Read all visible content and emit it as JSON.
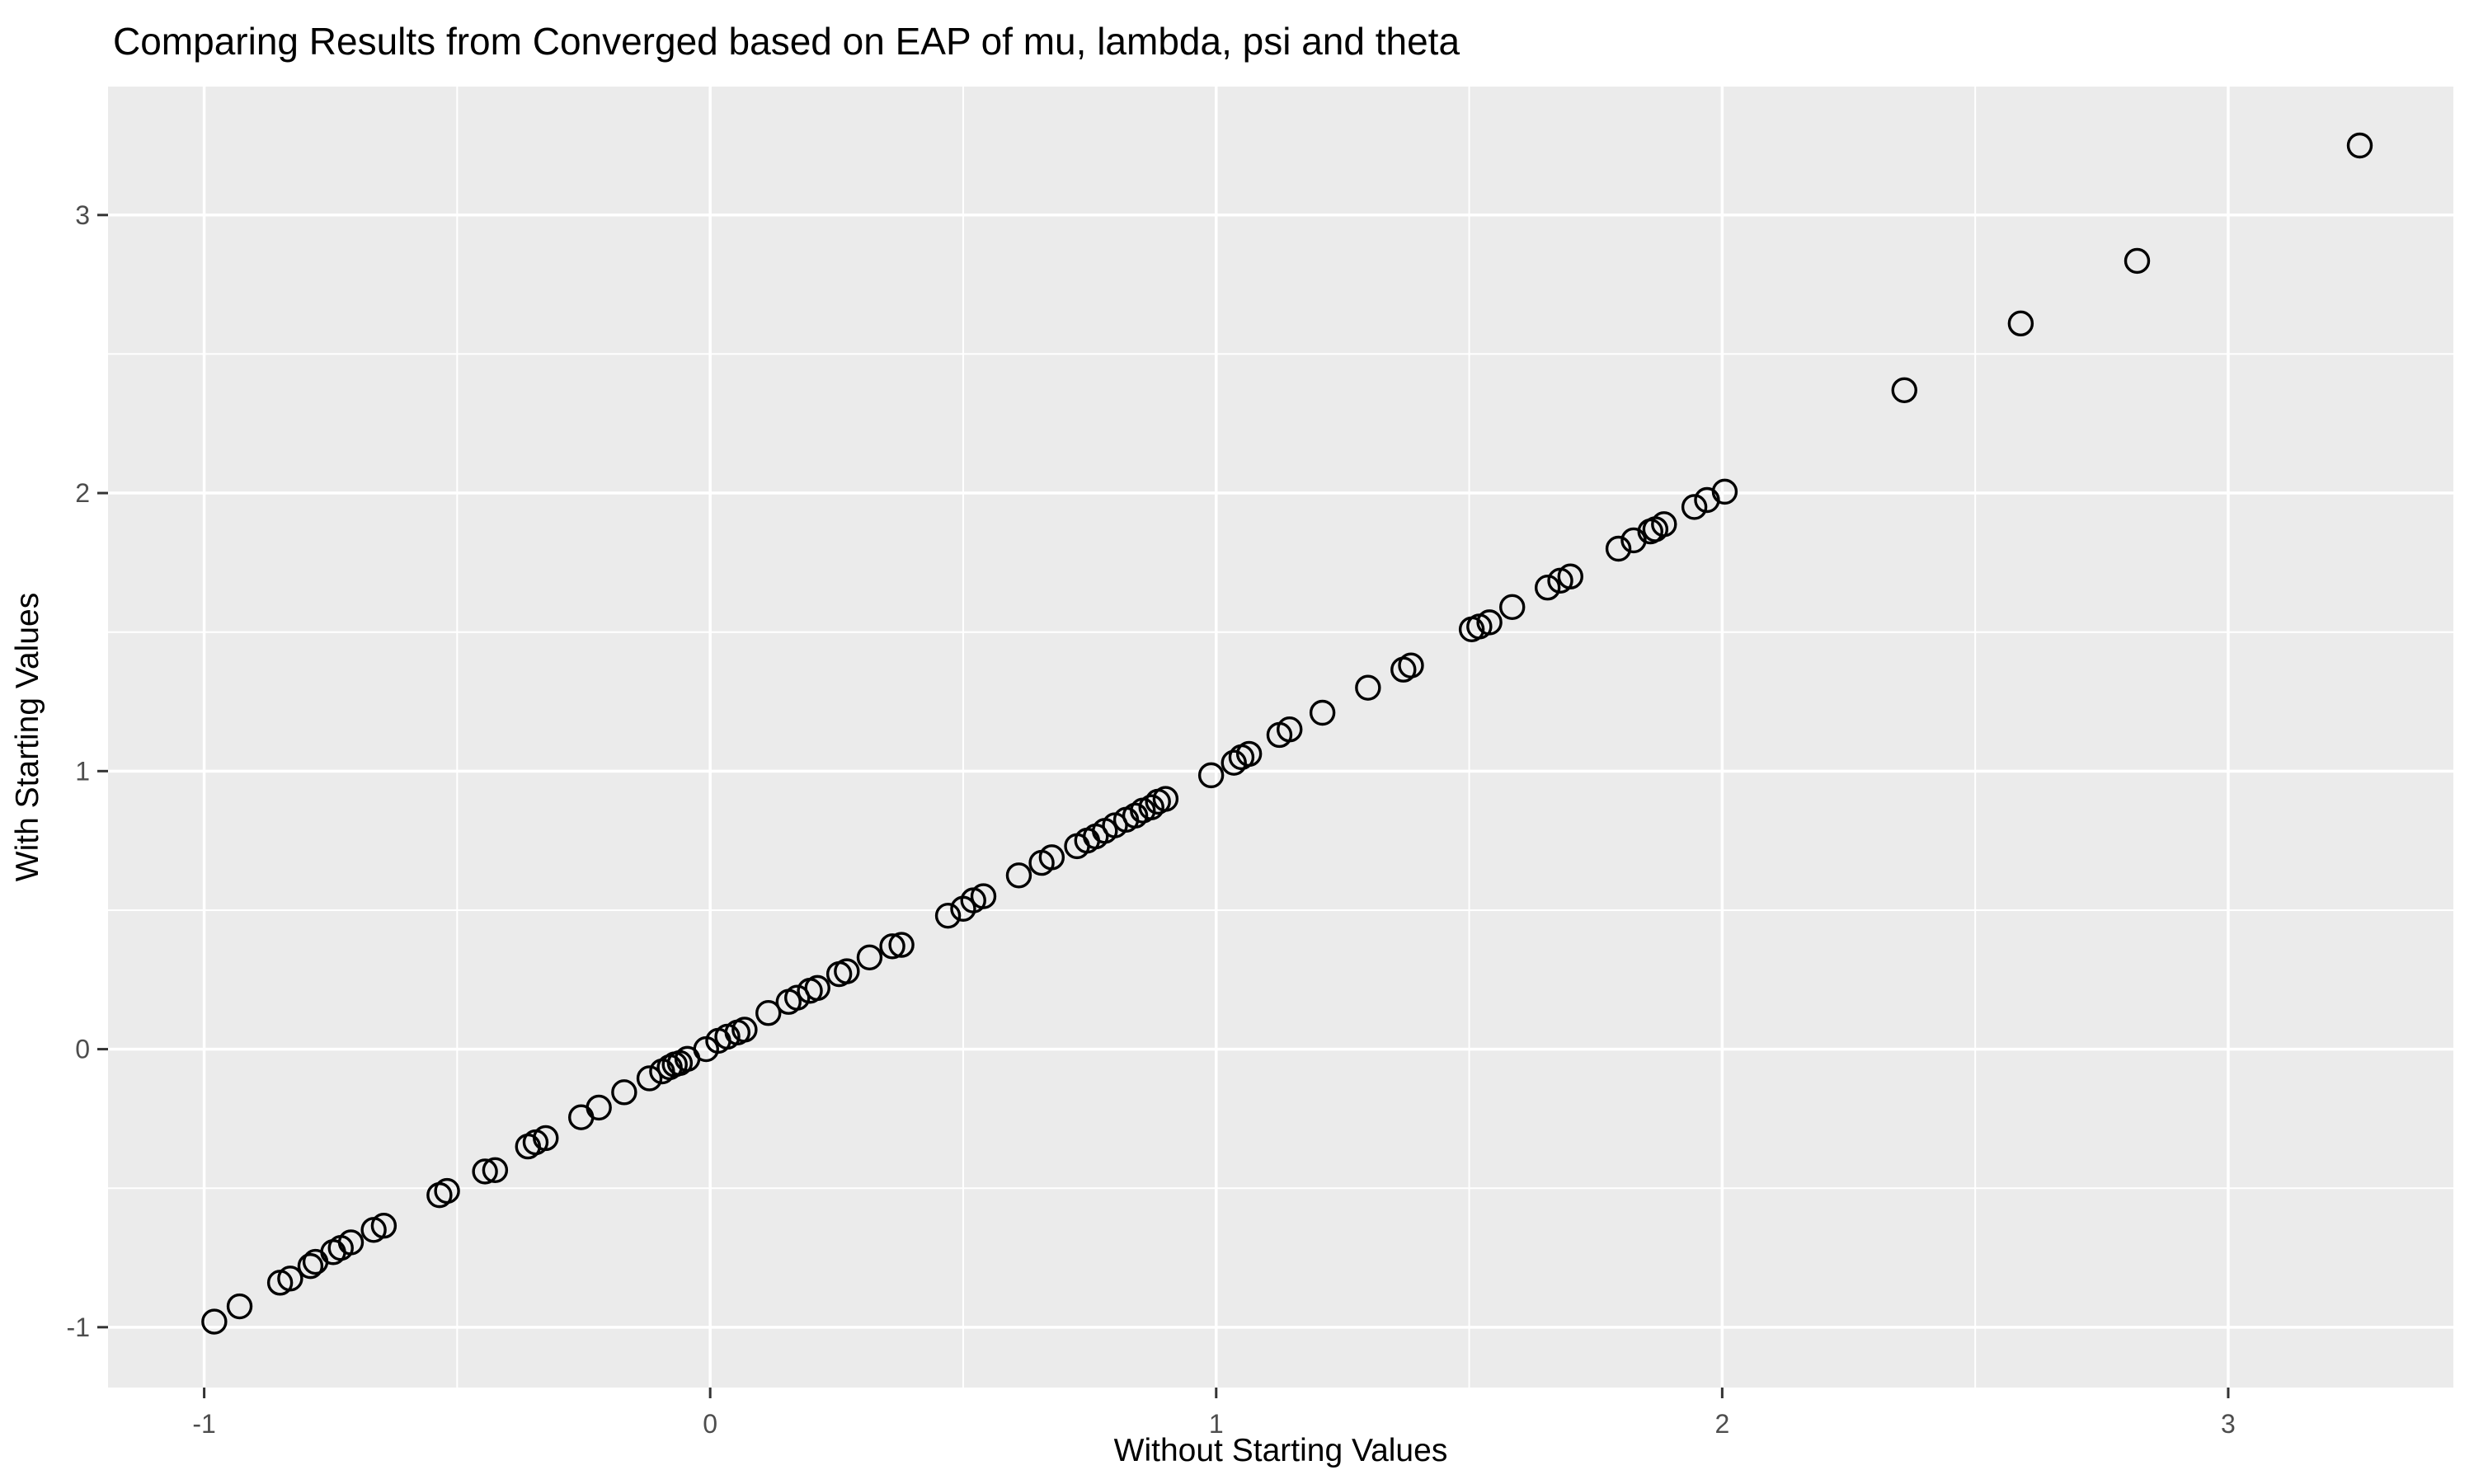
{
  "chart_data": {
    "type": "scatter",
    "title": "Comparing Results from Converged based on EAP of mu, lambda, psi and theta",
    "xlabel": "Without Starting Values",
    "ylabel": "With Starting Values",
    "x_ticks": [
      -1,
      0,
      1,
      2,
      3
    ],
    "y_ticks": [
      -1,
      0,
      1,
      2,
      3
    ],
    "x_minor_ticks": [
      -0.5,
      0.5,
      1.5,
      2.5
    ],
    "y_minor_ticks": [
      -0.5,
      0.5,
      1.5,
      2.5
    ],
    "xlim": [
      -1.19,
      3.445
    ],
    "ylim": [
      -1.217,
      3.462
    ],
    "grid": "major-and-minor",
    "legend_position": "none",
    "marker": {
      "shape": "open-circle",
      "radius_px": 14,
      "stroke_px": 3.4
    },
    "colors": {
      "background": "#FFFFFF",
      "panel_background": "#EBEBEB",
      "gridline": "#FFFFFF",
      "point_stroke": "#000000",
      "tick_mark": "#333333",
      "tick_text": "#4D4D4D",
      "title_text": "#000000"
    },
    "points": [
      [
        -0.98,
        -0.98
      ],
      [
        -0.93,
        -0.925
      ],
      [
        -0.85,
        -0.84
      ],
      [
        -0.83,
        -0.825
      ],
      [
        -0.79,
        -0.78
      ],
      [
        -0.78,
        -0.765
      ],
      [
        -0.745,
        -0.73
      ],
      [
        -0.73,
        -0.715
      ],
      [
        -0.71,
        -0.695
      ],
      [
        -0.665,
        -0.65
      ],
      [
        -0.645,
        -0.635
      ],
      [
        -0.535,
        -0.525
      ],
      [
        -0.52,
        -0.51
      ],
      [
        -0.445,
        -0.44
      ],
      [
        -0.425,
        -0.435
      ],
      [
        -0.36,
        -0.35
      ],
      [
        -0.345,
        -0.335
      ],
      [
        -0.325,
        -0.32
      ],
      [
        -0.255,
        -0.245
      ],
      [
        -0.22,
        -0.21
      ],
      [
        -0.17,
        -0.155
      ],
      [
        -0.12,
        -0.105
      ],
      [
        -0.095,
        -0.08
      ],
      [
        -0.08,
        -0.065
      ],
      [
        -0.07,
        -0.055
      ],
      [
        -0.06,
        -0.05
      ],
      [
        -0.045,
        -0.035
      ],
      [
        -0.008,
        0.0
      ],
      [
        0.016,
        0.03
      ],
      [
        0.034,
        0.045
      ],
      [
        0.054,
        0.06
      ],
      [
        0.068,
        0.07
      ],
      [
        0.115,
        0.13
      ],
      [
        0.155,
        0.17
      ],
      [
        0.172,
        0.185
      ],
      [
        0.197,
        0.21
      ],
      [
        0.212,
        0.22
      ],
      [
        0.255,
        0.27
      ],
      [
        0.27,
        0.28
      ],
      [
        0.315,
        0.33
      ],
      [
        0.36,
        0.37
      ],
      [
        0.378,
        0.375
      ],
      [
        0.47,
        0.48
      ],
      [
        0.5,
        0.505
      ],
      [
        0.52,
        0.535
      ],
      [
        0.54,
        0.55
      ],
      [
        0.61,
        0.625
      ],
      [
        0.655,
        0.67
      ],
      [
        0.675,
        0.69
      ],
      [
        0.725,
        0.73
      ],
      [
        0.745,
        0.75
      ],
      [
        0.762,
        0.765
      ],
      [
        0.78,
        0.785
      ],
      [
        0.8,
        0.805
      ],
      [
        0.822,
        0.825
      ],
      [
        0.84,
        0.84
      ],
      [
        0.855,
        0.858
      ],
      [
        0.872,
        0.87
      ],
      [
        0.885,
        0.89
      ],
      [
        0.9,
        0.9
      ],
      [
        0.99,
        0.985
      ],
      [
        1.035,
        1.03
      ],
      [
        1.05,
        1.05
      ],
      [
        1.065,
        1.062
      ],
      [
        1.125,
        1.13
      ],
      [
        1.145,
        1.15
      ],
      [
        1.21,
        1.21
      ],
      [
        1.3,
        1.3
      ],
      [
        1.37,
        1.365
      ],
      [
        1.385,
        1.38
      ],
      [
        1.505,
        1.51
      ],
      [
        1.52,
        1.52
      ],
      [
        1.54,
        1.535
      ],
      [
        1.585,
        1.59
      ],
      [
        1.655,
        1.66
      ],
      [
        1.68,
        1.685
      ],
      [
        1.7,
        1.7
      ],
      [
        1.795,
        1.8
      ],
      [
        1.825,
        1.83
      ],
      [
        1.858,
        1.862
      ],
      [
        1.868,
        1.87
      ],
      [
        1.885,
        1.888
      ],
      [
        1.945,
        1.95
      ],
      [
        1.97,
        1.975
      ],
      [
        2.005,
        2.005
      ],
      [
        2.36,
        2.37
      ],
      [
        2.59,
        2.61
      ],
      [
        2.82,
        2.835
      ],
      [
        3.26,
        3.25
      ]
    ]
  }
}
